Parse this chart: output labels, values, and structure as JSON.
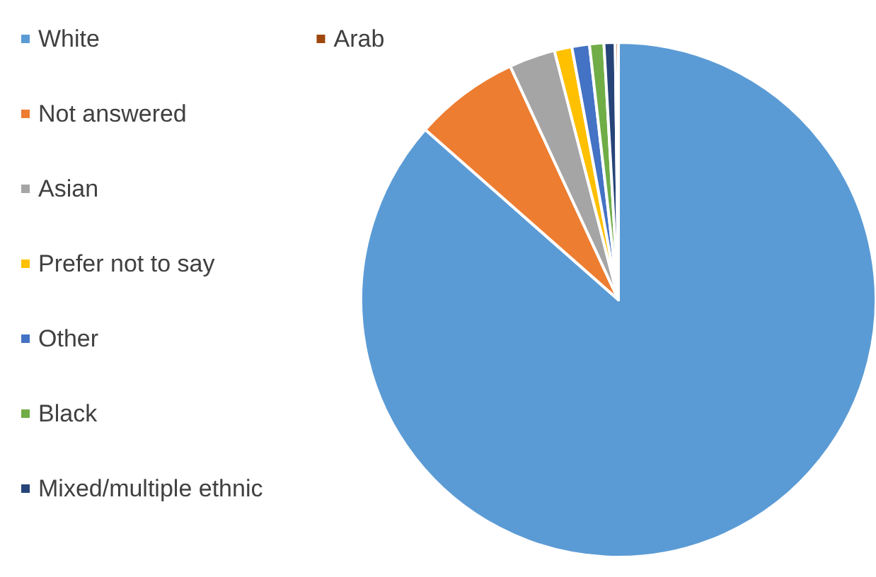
{
  "chart_data": {
    "type": "pie",
    "categories": [
      "White",
      "Not answered",
      "Asian",
      "Prefer not to say",
      "Other",
      "Black",
      "Mixed/multiple ethnic",
      "Arab"
    ],
    "values": [
      86.5,
      6.6,
      2.9,
      1.1,
      1.1,
      0.9,
      0.7,
      0.2
    ],
    "colors": [
      "#5b9bd5",
      "#ed7d31",
      "#a5a5a5",
      "#ffc000",
      "#4472c4",
      "#70ad47",
      "#264478",
      "#9e480e"
    ],
    "legend": "left"
  }
}
